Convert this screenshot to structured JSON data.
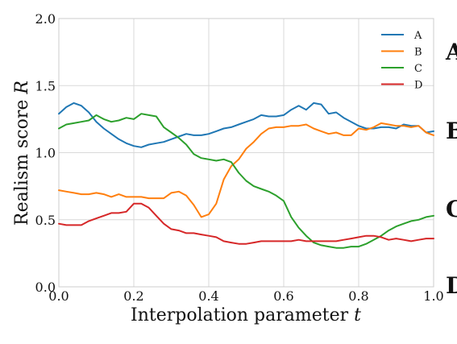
{
  "chart_data": {
    "type": "line",
    "xlabel": "Interpolation parameter",
    "xlabel_var": "t",
    "ylabel": "Realism score",
    "ylabel_var": "R",
    "xlim": [
      0.0,
      1.0
    ],
    "ylim": [
      0.0,
      2.0
    ],
    "xticks": [
      "0.0",
      "0.2",
      "0.4",
      "0.6",
      "0.8",
      "1.0"
    ],
    "yticks": [
      "0.0",
      "0.5",
      "1.0",
      "1.5",
      "2.0"
    ],
    "grid": true,
    "legend_position": "top-right",
    "x": [
      0.0,
      0.02,
      0.04,
      0.06,
      0.08,
      0.1,
      0.12,
      0.14,
      0.16,
      0.18,
      0.2,
      0.22,
      0.24,
      0.26,
      0.28,
      0.3,
      0.32,
      0.34,
      0.36,
      0.38,
      0.4,
      0.42,
      0.44,
      0.46,
      0.48,
      0.5,
      0.52,
      0.54,
      0.56,
      0.58,
      0.6,
      0.62,
      0.64,
      0.66,
      0.68,
      0.7,
      0.72,
      0.74,
      0.76,
      0.78,
      0.8,
      0.82,
      0.84,
      0.86,
      0.88,
      0.9,
      0.92,
      0.94,
      0.96,
      0.98,
      1.0
    ],
    "series": [
      {
        "name": "A",
        "color": "#1f77b4",
        "values": [
          1.29,
          1.34,
          1.37,
          1.35,
          1.3,
          1.23,
          1.18,
          1.14,
          1.1,
          1.07,
          1.05,
          1.04,
          1.06,
          1.07,
          1.08,
          1.1,
          1.12,
          1.14,
          1.13,
          1.13,
          1.14,
          1.16,
          1.18,
          1.19,
          1.21,
          1.23,
          1.25,
          1.28,
          1.27,
          1.27,
          1.28,
          1.32,
          1.35,
          1.32,
          1.37,
          1.36,
          1.29,
          1.3,
          1.26,
          1.23,
          1.2,
          1.18,
          1.18,
          1.19,
          1.19,
          1.18,
          1.21,
          1.2,
          1.2,
          1.15,
          1.16
        ]
      },
      {
        "name": "B",
        "color": "#ff7f0e",
        "values": [
          0.72,
          0.71,
          0.7,
          0.69,
          0.69,
          0.7,
          0.69,
          0.67,
          0.69,
          0.67,
          0.67,
          0.67,
          0.66,
          0.66,
          0.66,
          0.7,
          0.71,
          0.68,
          0.61,
          0.52,
          0.54,
          0.62,
          0.8,
          0.9,
          0.95,
          1.03,
          1.08,
          1.14,
          1.18,
          1.19,
          1.19,
          1.2,
          1.2,
          1.21,
          1.18,
          1.16,
          1.14,
          1.15,
          1.13,
          1.13,
          1.18,
          1.17,
          1.19,
          1.22,
          1.21,
          1.2,
          1.2,
          1.19,
          1.2,
          1.15,
          1.13
        ]
      },
      {
        "name": "C",
        "color": "#2ca02c",
        "values": [
          1.18,
          1.21,
          1.22,
          1.23,
          1.24,
          1.28,
          1.25,
          1.23,
          1.24,
          1.26,
          1.25,
          1.29,
          1.28,
          1.27,
          1.19,
          1.15,
          1.11,
          1.06,
          0.99,
          0.96,
          0.95,
          0.94,
          0.95,
          0.93,
          0.85,
          0.79,
          0.75,
          0.73,
          0.71,
          0.68,
          0.64,
          0.52,
          0.44,
          0.38,
          0.33,
          0.31,
          0.3,
          0.29,
          0.29,
          0.3,
          0.3,
          0.32,
          0.35,
          0.38,
          0.42,
          0.45,
          0.47,
          0.49,
          0.5,
          0.52,
          0.53
        ]
      },
      {
        "name": "D",
        "color": "#d62728",
        "values": [
          0.47,
          0.46,
          0.46,
          0.46,
          0.49,
          0.51,
          0.53,
          0.55,
          0.55,
          0.56,
          0.62,
          0.62,
          0.59,
          0.53,
          0.47,
          0.43,
          0.42,
          0.4,
          0.4,
          0.39,
          0.38,
          0.37,
          0.34,
          0.33,
          0.32,
          0.32,
          0.33,
          0.34,
          0.34,
          0.34,
          0.34,
          0.34,
          0.35,
          0.34,
          0.34,
          0.34,
          0.34,
          0.34,
          0.35,
          0.36,
          0.37,
          0.38,
          0.38,
          0.37,
          0.35,
          0.36,
          0.35,
          0.34,
          0.35,
          0.36,
          0.36
        ]
      }
    ]
  },
  "side_panel": {
    "letters": [
      "A",
      "B",
      "C",
      "D"
    ]
  }
}
